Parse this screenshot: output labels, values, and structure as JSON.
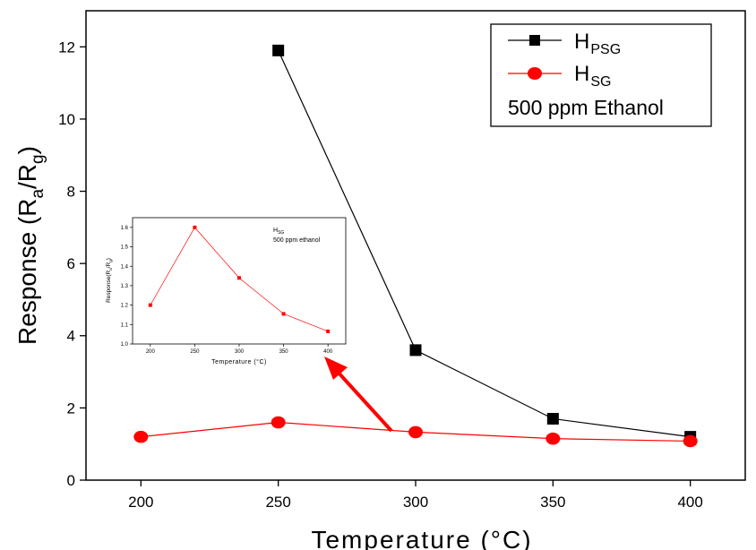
{
  "chart_data": [
    {
      "type": "line",
      "x": [
        200,
        250,
        300,
        350,
        400
      ],
      "xlim": [
        180,
        420
      ],
      "ylim": [
        0,
        13
      ],
      "xticks": [
        "200",
        "250",
        "300",
        "350",
        "400"
      ],
      "yticks": [
        "0",
        "2",
        "4",
        "6",
        "8",
        "10",
        "12"
      ],
      "xlabel": "Temperature (°C)",
      "ylabel": {
        "main": "Response (R",
        "sub1": "a",
        "mid": "/R",
        "sub2": "g",
        "end": ")"
      },
      "legend_position": "top-right",
      "series": [
        {
          "name_main": "H",
          "name_sub": "PSG",
          "color": "#000000",
          "marker": "square",
          "x": [
            250,
            300,
            350,
            400
          ],
          "values": [
            11.9,
            3.6,
            1.7,
            1.2
          ]
        },
        {
          "name_main": "H",
          "name_sub": "SG",
          "color": "#ff0000",
          "marker": "circle",
          "x": [
            200,
            250,
            300,
            350,
            400
          ],
          "values": [
            1.2,
            1.6,
            1.33,
            1.15,
            1.08
          ]
        }
      ],
      "legend_note": "500 ppm Ethanol"
    },
    {
      "type": "line",
      "inset": true,
      "x": [
        200,
        250,
        300,
        350,
        400
      ],
      "xlim": [
        180,
        420
      ],
      "ylim": [
        1.0,
        1.65
      ],
      "xticks": [
        "200",
        "250",
        "300",
        "350",
        "400"
      ],
      "yticks": [
        "1.0",
        "1.1",
        "1.2",
        "1.3",
        "1.4",
        "1.5",
        "1.6"
      ],
      "xlabel": "Temperature (°C)",
      "ylabel": {
        "main": "Response(R",
        "sub1": "a",
        "mid": "/R",
        "sub2": "g",
        "end": ")"
      },
      "series": [
        {
          "color": "#ff0000",
          "marker": "square",
          "x": [
            200,
            250,
            300,
            350,
            400
          ],
          "values": [
            1.2,
            1.6,
            1.34,
            1.155,
            1.065
          ]
        }
      ],
      "annotation": {
        "main": "H",
        "sub": "SG",
        "note": "500 ppm ethanol"
      }
    }
  ]
}
